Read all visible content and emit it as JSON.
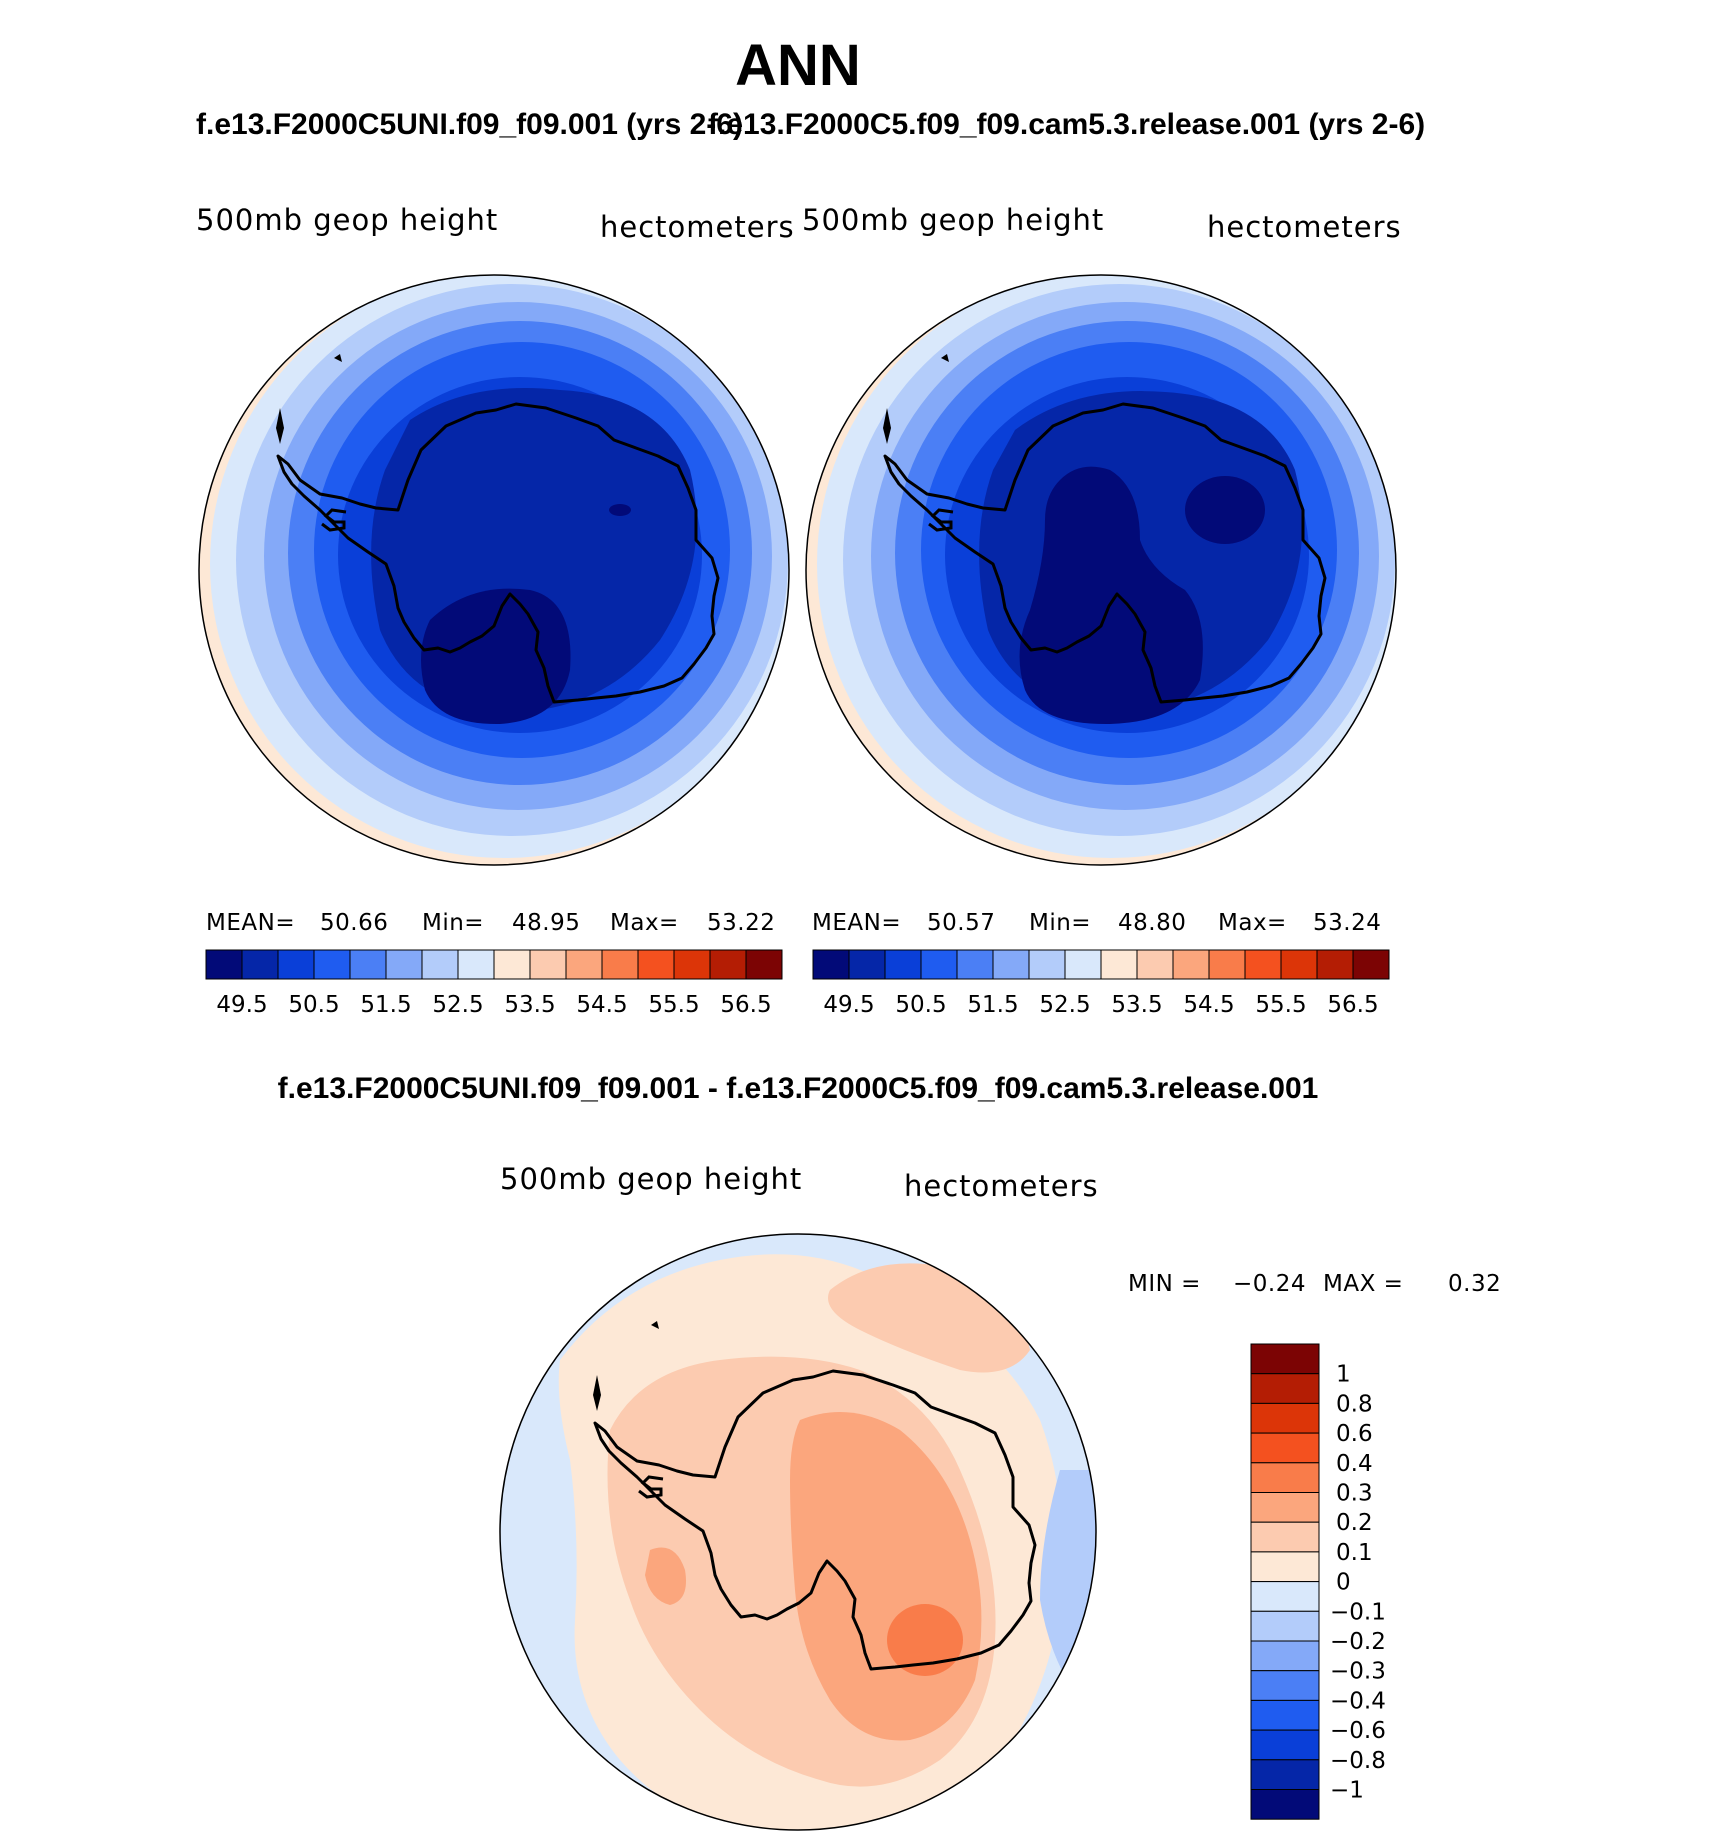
{
  "figure": {
    "season": "ANN",
    "case_left": "f.e13.F2000C5UNI.f09_f09.001 (yrs 2-6)",
    "case_right": "f.e13.F2000C5.f09_f09.cam5.3.release.001 (yrs 2-6)",
    "diff_title": "f.e13.F2000C5UNI.f09_f09.001 - f.e13.F2000C5.f09_f09.cam5.3.release.001"
  },
  "panels": [
    {
      "variable": "500mb geop height",
      "units": "hectometers",
      "mean_label": "MEAN=",
      "mean": "50.66",
      "min_label": "Min=",
      "min": "48.95",
      "max_label": "Max=",
      "max": "53.22"
    },
    {
      "variable": "500mb geop height",
      "units": "hectometers",
      "mean_label": "MEAN=",
      "mean": "50.57",
      "min_label": "Min=",
      "min": "48.80",
      "max_label": "Max=",
      "max": "53.24"
    }
  ],
  "diff_panel": {
    "variable": "500mb geop height",
    "units": "hectometers",
    "min_label": "MIN =",
    "min": "−0.24",
    "max_label": "MAX =",
    "max": "0.32"
  },
  "chart_data": {
    "type": "heatmap",
    "projection": "south polar stereographic",
    "colorbar_levels": [
      "49.5",
      "50.5",
      "51.5",
      "52.5",
      "53.5",
      "54.5",
      "55.5",
      "56.5"
    ],
    "colorbar_colors": [
      "#020a78",
      "#0526a8",
      "#0a3fd8",
      "#1f5cf0",
      "#4b7ff5",
      "#84a9f8",
      "#b3ccfa",
      "#d9e8fb",
      "#fde8d6",
      "#fccbb0",
      "#fba67d",
      "#f97c4a",
      "#f4511f",
      "#dc3508",
      "#b41d04",
      "#7c0404"
    ],
    "diff_levels": [
      "1",
      "0.8",
      "0.6",
      "0.4",
      "0.3",
      "0.2",
      "0.1",
      "0",
      "−0.1",
      "−0.2",
      "−0.3",
      "−0.4",
      "−0.6",
      "−0.8",
      "−1"
    ],
    "diff_colors_top_to_bottom": [
      "#7c0404",
      "#b41d04",
      "#dc3508",
      "#f4511f",
      "#f97c4a",
      "#fba67d",
      "#fccbb0",
      "#fde8d6",
      "#d9e8fb",
      "#b3ccfa",
      "#84a9f8",
      "#4b7ff5",
      "#1f5cf0",
      "#0a3fd8",
      "#0526a8",
      "#020a78"
    ]
  }
}
